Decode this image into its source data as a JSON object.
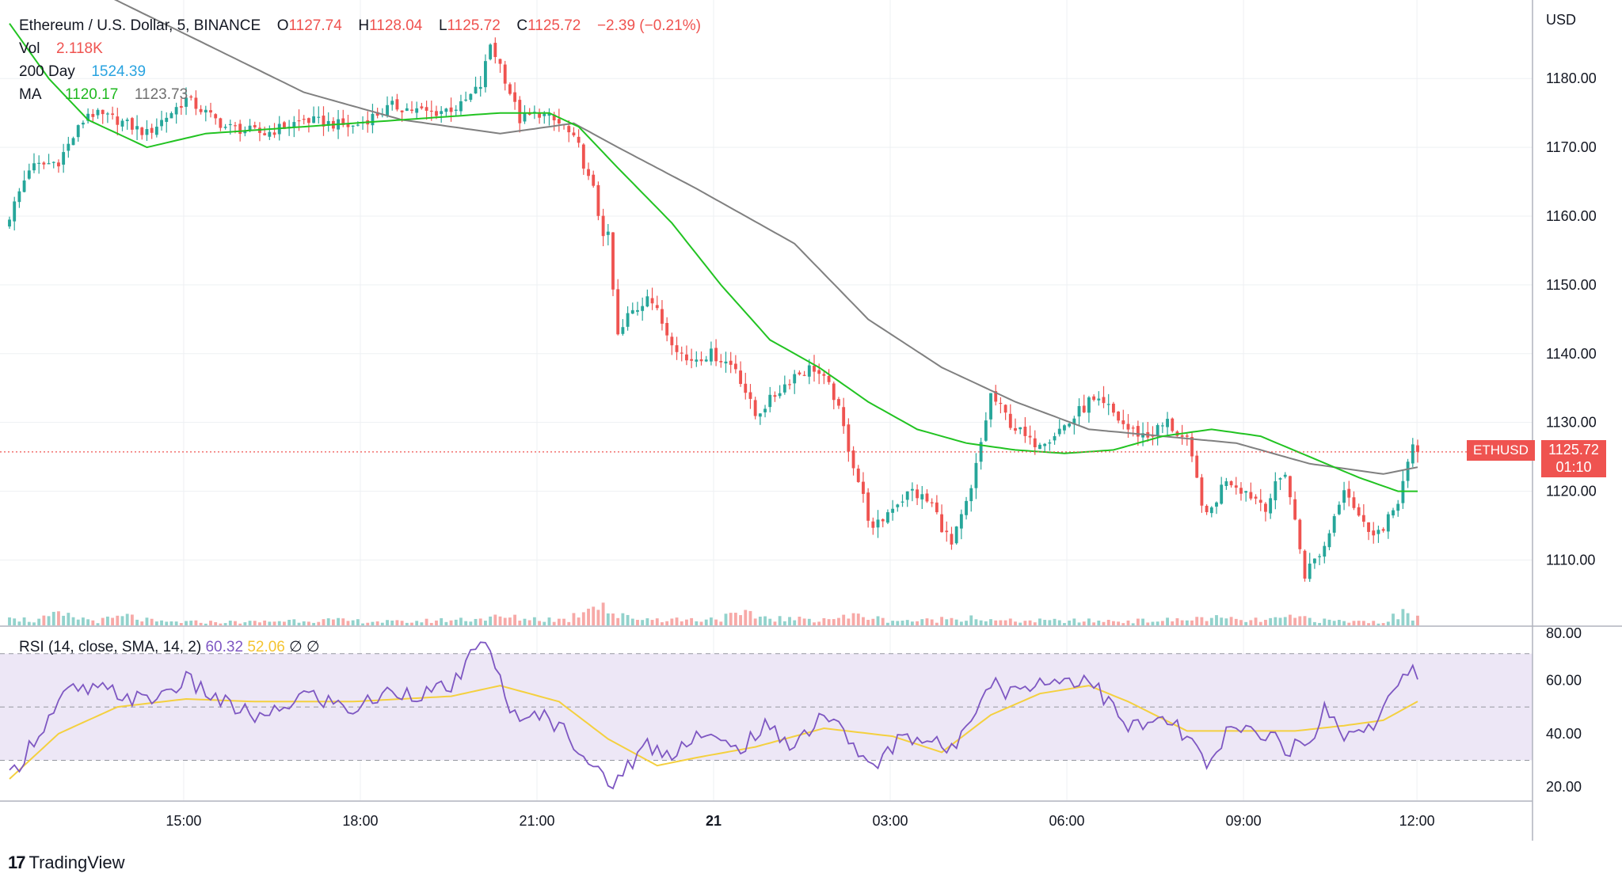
{
  "legend": {
    "symbol": "Ethereum / U.S. Dollar, 5, BINANCE",
    "o_label": "O",
    "o": "1127.74",
    "h_label": "H",
    "h": "1128.04",
    "l_label": "L",
    "l": "1125.72",
    "c_label": "C",
    "c": "1125.72",
    "change": "−2.39 (−0.21%)",
    "vol_label": "Vol",
    "vol": "2.118K",
    "ma200_label": "200 Day",
    "ma200": "1524.39",
    "ma_label": "MA",
    "ma_a": "1120.17",
    "ma_b": "1123.73"
  },
  "rsi_legend": {
    "label": "RSI (14, close, SMA, 14, 2)",
    "rsi": "60.32",
    "sma": "52.06",
    "na1": "∅",
    "na2": "∅"
  },
  "price_tag": {
    "symbol": "ETHUSD",
    "price": "1125.72",
    "countdown": "01:10"
  },
  "branding": {
    "name": "TradingView"
  },
  "colors": {
    "up": "#26a69a",
    "down": "#ef5350",
    "ma_fast": "#22c322",
    "ma_slow": "#808080",
    "rsi": "#7e57c2",
    "rsi_sma": "#f4d03f",
    "rsi_band": "#ede7f6"
  },
  "chart_data": [
    {
      "type": "candlestick",
      "currency": "USD",
      "x_tick_labels": [
        "15:00",
        "18:00",
        "21:00",
        "21",
        "03:00",
        "06:00",
        "09:00",
        "12:00"
      ],
      "y_tick_labels": [
        "1110.00",
        "1120.00",
        "1130.00",
        "1140.00",
        "1150.00",
        "1160.00",
        "1170.00",
        "1180.00"
      ],
      "ylim": [
        1100.5,
        1190.5
      ],
      "current_price": 1125.72,
      "close_keypoints": [
        [
          0,
          1160
        ],
        [
          4,
          1167
        ],
        [
          10,
          1168
        ],
        [
          16,
          1175
        ],
        [
          22,
          1174
        ],
        [
          28,
          1172
        ],
        [
          36,
          1177
        ],
        [
          44,
          1173
        ],
        [
          52,
          1172
        ],
        [
          60,
          1174
        ],
        [
          70,
          1173
        ],
        [
          78,
          1176
        ],
        [
          86,
          1175
        ],
        [
          92,
          1176
        ],
        [
          96,
          1179
        ],
        [
          98,
          1185
        ],
        [
          100,
          1182
        ],
        [
          104,
          1174
        ],
        [
          108,
          1175
        ],
        [
          113,
          1173
        ],
        [
          116,
          1170
        ],
        [
          119,
          1163
        ],
        [
          122,
          1156
        ],
        [
          124,
          1142
        ],
        [
          126,
          1145
        ],
        [
          130,
          1149
        ],
        [
          134,
          1143
        ],
        [
          138,
          1139
        ],
        [
          143,
          1140
        ],
        [
          148,
          1138
        ],
        [
          152,
          1131
        ],
        [
          156,
          1134
        ],
        [
          160,
          1137
        ],
        [
          164,
          1138
        ],
        [
          168,
          1134
        ],
        [
          172,
          1124
        ],
        [
          176,
          1114
        ],
        [
          180,
          1118
        ],
        [
          184,
          1120
        ],
        [
          188,
          1118
        ],
        [
          192,
          1112
        ],
        [
          196,
          1120
        ],
        [
          200,
          1134
        ],
        [
          204,
          1130
        ],
        [
          208,
          1127
        ],
        [
          212,
          1128
        ],
        [
          216,
          1130
        ],
        [
          220,
          1133
        ],
        [
          224,
          1132
        ],
        [
          228,
          1129
        ],
        [
          232,
          1128
        ],
        [
          236,
          1130
        ],
        [
          240,
          1127
        ],
        [
          244,
          1116
        ],
        [
          248,
          1122
        ],
        [
          252,
          1120
        ],
        [
          256,
          1118
        ],
        [
          260,
          1123
        ],
        [
          264,
          1108
        ],
        [
          268,
          1112
        ],
        [
          272,
          1121
        ],
        [
          276,
          1115
        ],
        [
          280,
          1114
        ],
        [
          283,
          1119
        ],
        [
          286,
          1126
        ],
        [
          287,
          1125.72
        ]
      ],
      "ma_fast_keypoints": [
        [
          0,
          1188
        ],
        [
          8,
          1180
        ],
        [
          16,
          1174
        ],
        [
          28,
          1170
        ],
        [
          40,
          1172
        ],
        [
          60,
          1173
        ],
        [
          80,
          1174
        ],
        [
          100,
          1175
        ],
        [
          110,
          1175
        ],
        [
          116,
          1173
        ],
        [
          124,
          1167
        ],
        [
          135,
          1159
        ],
        [
          145,
          1150
        ],
        [
          155,
          1142
        ],
        [
          165,
          1138
        ],
        [
          175,
          1133
        ],
        [
          185,
          1129
        ],
        [
          195,
          1127
        ],
        [
          205,
          1126
        ],
        [
          215,
          1125.5
        ],
        [
          225,
          1126
        ],
        [
          235,
          1128
        ],
        [
          245,
          1129
        ],
        [
          255,
          1128
        ],
        [
          265,
          1125
        ],
        [
          275,
          1122
        ],
        [
          283,
          1120
        ],
        [
          287,
          1120
        ]
      ],
      "ma_slow_keypoints": [
        [
          0,
          1200
        ],
        [
          20,
          1192
        ],
        [
          40,
          1185
        ],
        [
          60,
          1178
        ],
        [
          80,
          1174
        ],
        [
          100,
          1172
        ],
        [
          110,
          1173
        ],
        [
          115,
          1173.5
        ],
        [
          124,
          1170
        ],
        [
          140,
          1164
        ],
        [
          160,
          1156
        ],
        [
          175,
          1145
        ],
        [
          190,
          1138
        ],
        [
          205,
          1133
        ],
        [
          220,
          1129
        ],
        [
          235,
          1128
        ],
        [
          250,
          1127
        ],
        [
          265,
          1124
        ],
        [
          280,
          1122.5
        ],
        [
          287,
          1123.5
        ]
      ]
    },
    {
      "type": "bar",
      "name": "Volume",
      "ylim": [
        0,
        100
      ],
      "keypoints": [
        [
          0,
          14
        ],
        [
          2,
          6
        ],
        [
          5,
          4
        ],
        [
          10,
          9
        ],
        [
          18,
          4
        ],
        [
          24,
          8
        ],
        [
          30,
          3
        ],
        [
          50,
          3
        ],
        [
          60,
          5
        ],
        [
          80,
          3
        ],
        [
          100,
          7
        ],
        [
          114,
          5
        ],
        [
          120,
          25
        ],
        [
          122,
          14
        ],
        [
          124,
          8
        ],
        [
          130,
          6
        ],
        [
          140,
          5
        ],
        [
          150,
          9
        ],
        [
          160,
          5
        ],
        [
          170,
          7
        ],
        [
          174,
          9
        ],
        [
          178,
          5
        ],
        [
          186,
          4
        ],
        [
          196,
          8
        ],
        [
          200,
          4
        ],
        [
          210,
          4
        ],
        [
          230,
          4
        ],
        [
          240,
          5
        ],
        [
          244,
          7
        ],
        [
          252,
          4
        ],
        [
          264,
          7
        ],
        [
          268,
          4
        ],
        [
          280,
          3
        ],
        [
          284,
          11
        ],
        [
          286,
          8
        ],
        [
          287,
          10
        ]
      ]
    },
    {
      "type": "line",
      "name": "RSI",
      "y_tick_labels": [
        "20.00",
        "40.00",
        "60.00",
        "80.00"
      ],
      "ylim": [
        15,
        80
      ],
      "bands": [
        30,
        50,
        70
      ],
      "rsi_keypoints": [
        [
          0,
          23
        ],
        [
          5,
          38
        ],
        [
          12,
          56
        ],
        [
          20,
          56
        ],
        [
          28,
          52
        ],
        [
          36,
          60
        ],
        [
          44,
          51
        ],
        [
          52,
          45
        ],
        [
          60,
          55
        ],
        [
          70,
          49
        ],
        [
          78,
          56
        ],
        [
          86,
          55
        ],
        [
          92,
          60
        ],
        [
          96,
          77
        ],
        [
          100,
          60
        ],
        [
          104,
          42
        ],
        [
          108,
          48
        ],
        [
          114,
          40
        ],
        [
          118,
          30
        ],
        [
          122,
          20
        ],
        [
          126,
          28
        ],
        [
          130,
          36
        ],
        [
          134,
          32
        ],
        [
          140,
          40
        ],
        [
          148,
          34
        ],
        [
          154,
          42
        ],
        [
          160,
          36
        ],
        [
          166,
          48
        ],
        [
          172,
          36
        ],
        [
          176,
          26
        ],
        [
          182,
          40
        ],
        [
          188,
          37
        ],
        [
          192,
          33
        ],
        [
          196,
          48
        ],
        [
          200,
          60
        ],
        [
          204,
          55
        ],
        [
          208,
          59
        ],
        [
          214,
          60
        ],
        [
          220,
          61
        ],
        [
          228,
          42
        ],
        [
          236,
          45
        ],
        [
          242,
          35
        ],
        [
          244,
          25
        ],
        [
          248,
          40
        ],
        [
          254,
          42
        ],
        [
          258,
          38
        ],
        [
          260,
          35
        ],
        [
          264,
          34
        ],
        [
          268,
          49
        ],
        [
          272,
          40
        ],
        [
          278,
          44
        ],
        [
          284,
          60
        ],
        [
          286,
          63
        ],
        [
          287,
          60.32
        ]
      ],
      "sma_keypoints": [
        [
          0,
          23
        ],
        [
          10,
          40
        ],
        [
          22,
          50
        ],
        [
          36,
          53
        ],
        [
          50,
          52
        ],
        [
          70,
          52
        ],
        [
          90,
          54
        ],
        [
          100,
          58
        ],
        [
          112,
          52
        ],
        [
          122,
          38
        ],
        [
          132,
          28
        ],
        [
          140,
          31
        ],
        [
          152,
          35
        ],
        [
          166,
          42
        ],
        [
          180,
          39
        ],
        [
          190,
          33
        ],
        [
          200,
          47
        ],
        [
          210,
          55
        ],
        [
          220,
          58
        ],
        [
          228,
          52
        ],
        [
          240,
          41
        ],
        [
          252,
          41
        ],
        [
          262,
          41
        ],
        [
          272,
          43
        ],
        [
          280,
          45
        ],
        [
          287,
          52.06
        ]
      ]
    }
  ]
}
